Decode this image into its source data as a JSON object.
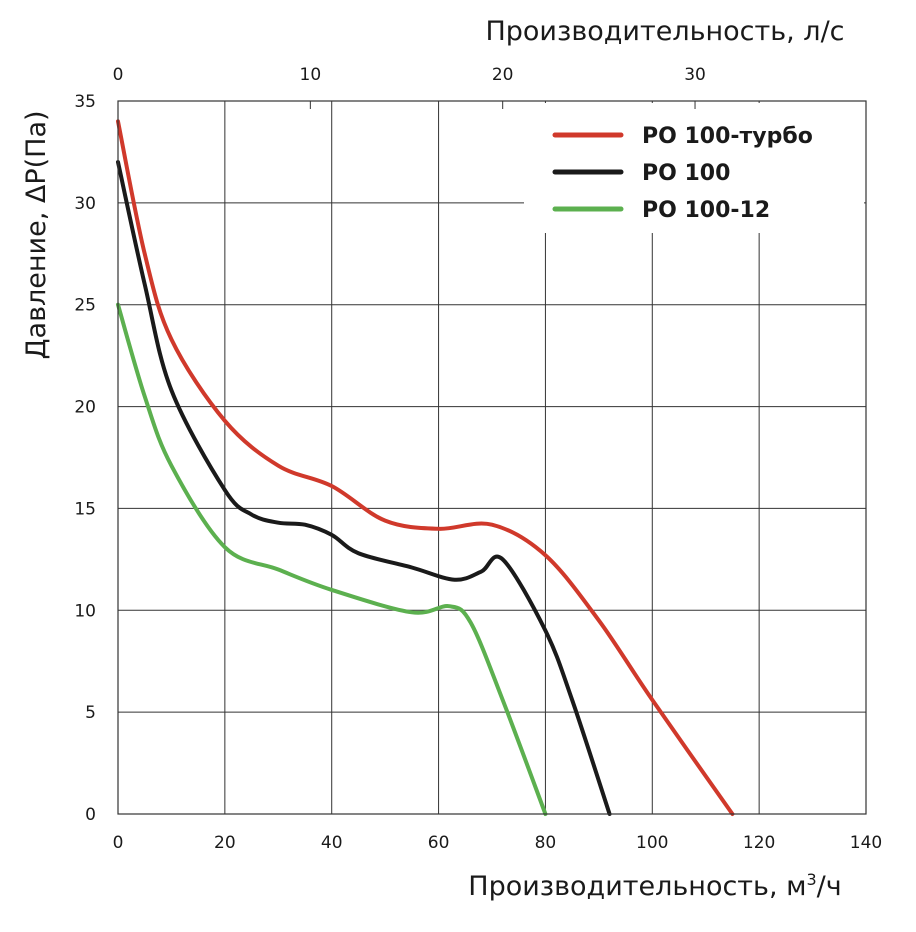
{
  "chart_data": {
    "type": "line",
    "xlabel": "Производительность, м³/ч",
    "xlabel_main": "Производительность, м",
    "xlabel_sup": "3",
    "xlabel_tail": "/ч",
    "x2label": "Производительность, л/с",
    "ylabel": "Давление, ΔP(Па)",
    "xlim": [
      0,
      140
    ],
    "ylim": [
      0,
      35
    ],
    "x2lim": [
      0,
      38.89
    ],
    "xticks": [
      0,
      20,
      40,
      60,
      80,
      100,
      120,
      140
    ],
    "yticks": [
      0,
      5,
      10,
      15,
      20,
      25,
      30,
      35
    ],
    "x2ticks": [
      0,
      10,
      20,
      30
    ],
    "grid": true,
    "legend_position": "top-right",
    "series": [
      {
        "name": "РО 100-турбо",
        "color": "#d0392b",
        "x": [
          0,
          5,
          10,
          20,
          30,
          40,
          50,
          60,
          70,
          80,
          90,
          100,
          115
        ],
        "y": [
          34,
          27.5,
          23.3,
          19.3,
          17.1,
          16.1,
          14.4,
          14.0,
          14.2,
          12.7,
          9.5,
          5.6,
          0
        ]
      },
      {
        "name": "РО 100",
        "color": "#1a1a1a",
        "x": [
          0,
          5,
          10,
          20,
          25,
          30,
          35,
          40,
          45,
          55,
          63,
          68,
          72,
          80,
          85,
          92
        ],
        "y": [
          32,
          26,
          20.8,
          15.9,
          14.7,
          14.3,
          14.2,
          13.7,
          12.8,
          12.1,
          11.5,
          11.9,
          12.5,
          9.0,
          5.6,
          0
        ]
      },
      {
        "name": "РО 100-12",
        "color": "#5cb04f",
        "x": [
          0,
          5,
          10,
          20,
          30,
          40,
          55,
          62,
          66,
          72,
          80
        ],
        "y": [
          25,
          20.5,
          17.1,
          13.1,
          12.0,
          11.0,
          9.9,
          10.2,
          9.4,
          5.6,
          0
        ]
      }
    ]
  }
}
